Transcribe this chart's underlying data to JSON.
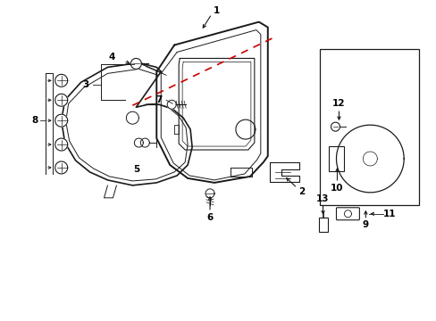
{
  "bg_color": "#ffffff",
  "line_color": "#1a1a1a",
  "red_dash_color": "#cc0000",
  "label_color": "#000000",
  "figsize": [
    4.89,
    3.6
  ],
  "dpi": 100
}
